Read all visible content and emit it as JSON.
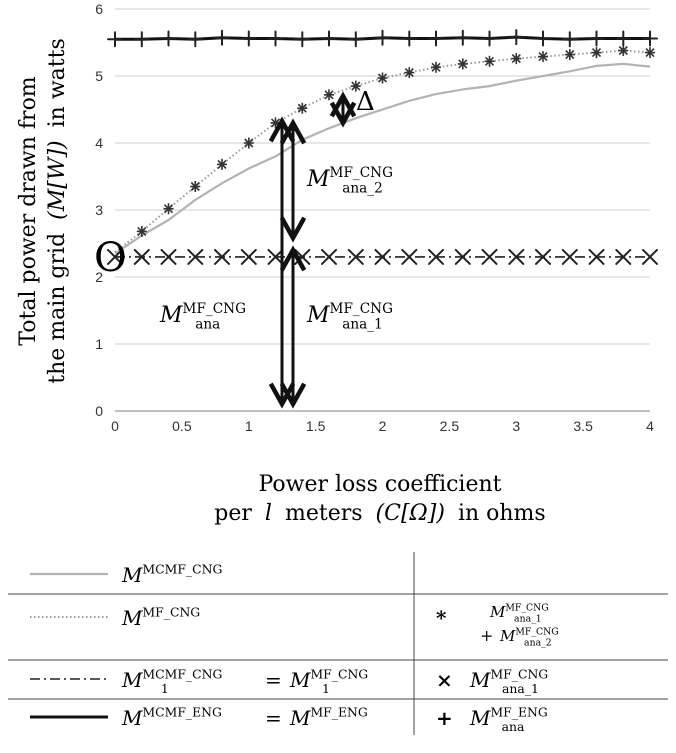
{
  "chart_data": {
    "type": "line",
    "ylabel_line1": "Total power drawn from",
    "ylabel_line2_a": "the main grid",
    "ylabel_line2_math": "(M[W])",
    "ylabel_line2_b": "in watts",
    "xlabel_line1": "Power loss coefficient",
    "xlabel_line2_a": "per",
    "xlabel_line2_l": "l",
    "xlabel_line2_b": "meters",
    "xlabel_line2_math": "(C[Ω])",
    "xlabel_line2_c": "in ohms",
    "xlim": [
      0,
      4
    ],
    "ylim": [
      0,
      6
    ],
    "x_ticks": [
      "0",
      "0.5",
      "1",
      "1.5",
      "2",
      "2.5",
      "3",
      "3.5",
      "4"
    ],
    "y_ticks": [
      "0",
      "1",
      "2",
      "3",
      "4",
      "5",
      "6"
    ],
    "grid": "horizontal",
    "series": [
      {
        "name": "M^MCMF_CNG",
        "style": "solid-gray",
        "x": [
          0,
          0.2,
          0.4,
          0.6,
          0.8,
          1.0,
          1.2,
          1.4,
          1.6,
          1.8,
          2.0,
          2.2,
          2.4,
          2.6,
          2.8,
          3.0,
          3.2,
          3.4,
          3.6,
          3.8,
          4.0
        ],
        "y": [
          2.35,
          2.62,
          2.85,
          3.15,
          3.4,
          3.62,
          3.8,
          4.05,
          4.22,
          4.37,
          4.5,
          4.63,
          4.73,
          4.8,
          4.85,
          4.93,
          5.0,
          5.07,
          5.15,
          5.18,
          5.14
        ]
      },
      {
        "name": "M^MF_CNG",
        "style": "dotted-gray",
        "x": [
          0,
          0.2,
          0.4,
          0.6,
          0.8,
          1.0,
          1.2,
          1.4,
          1.6,
          1.8,
          2.0,
          2.2,
          2.4,
          2.6,
          2.8,
          3.0,
          3.2,
          3.4,
          3.6,
          3.8,
          4.0
        ],
        "y": [
          2.37,
          2.68,
          3.02,
          3.35,
          3.68,
          4.0,
          4.3,
          4.52,
          4.72,
          4.85,
          4.97,
          5.05,
          5.13,
          5.18,
          5.22,
          5.26,
          5.29,
          5.32,
          5.35,
          5.38,
          5.35
        ]
      },
      {
        "name": "M_1^MCMF_CNG = M_1^MF_CNG",
        "style": "dashdot-black",
        "x": [
          0,
          0.2,
          0.4,
          0.6,
          0.8,
          1.0,
          1.2,
          1.4,
          1.6,
          1.8,
          2.0,
          2.2,
          2.4,
          2.6,
          2.8,
          3.0,
          3.2,
          3.4,
          3.6,
          3.8,
          4.0
        ],
        "y": [
          2.3,
          2.3,
          2.3,
          2.3,
          2.3,
          2.3,
          2.3,
          2.3,
          2.3,
          2.3,
          2.3,
          2.3,
          2.3,
          2.3,
          2.3,
          2.3,
          2.3,
          2.3,
          2.3,
          2.3,
          2.3
        ]
      },
      {
        "name": "M^MCMF_ENG = M^MF_ENG",
        "style": "solid-black",
        "x": [
          0,
          0.2,
          0.4,
          0.6,
          0.8,
          1.0,
          1.2,
          1.4,
          1.6,
          1.8,
          2.0,
          2.2,
          2.4,
          2.6,
          2.8,
          3.0,
          3.2,
          3.4,
          3.6,
          3.8,
          4.0
        ],
        "y": [
          5.55,
          5.55,
          5.56,
          5.55,
          5.57,
          5.56,
          5.56,
          5.55,
          5.56,
          5.55,
          5.57,
          5.56,
          5.56,
          5.57,
          5.56,
          5.58,
          5.56,
          5.55,
          5.56,
          5.56,
          5.56
        ]
      }
    ],
    "markers": [
      {
        "name": "M_ana_1^MF_CNG + M_ana_2^MF_CNG",
        "symbol": "asterisk",
        "x": [
          0.2,
          0.4,
          0.6,
          0.8,
          1.0,
          1.2,
          1.4,
          1.6,
          1.8,
          2.0,
          2.2,
          2.4,
          2.6,
          2.8,
          3.0,
          3.2,
          3.4,
          3.6,
          3.8,
          4.0
        ],
        "y": [
          2.68,
          3.02,
          3.35,
          3.68,
          4.0,
          4.3,
          4.52,
          4.72,
          4.85,
          4.97,
          5.05,
          5.13,
          5.18,
          5.22,
          5.26,
          5.29,
          5.32,
          5.35,
          5.38,
          5.35
        ]
      },
      {
        "name": "M_ana_1^MF_CNG",
        "symbol": "cross",
        "x": [
          0,
          0.2,
          0.4,
          0.6,
          0.8,
          1.0,
          1.2,
          1.4,
          1.6,
          1.8,
          2.0,
          2.2,
          2.4,
          2.6,
          2.8,
          3.0,
          3.2,
          3.4,
          3.6,
          3.8,
          4.0
        ],
        "y": [
          2.3,
          2.3,
          2.3,
          2.3,
          2.3,
          2.3,
          2.3,
          2.3,
          2.3,
          2.3,
          2.3,
          2.3,
          2.3,
          2.3,
          2.3,
          2.3,
          2.3,
          2.3,
          2.3,
          2.3,
          2.3
        ]
      },
      {
        "name": "M_ana^MF_ENG",
        "symbol": "plus",
        "x": [
          0,
          0.2,
          0.4,
          0.6,
          0.8,
          1.0,
          1.2,
          1.4,
          1.6,
          1.8,
          2.0,
          2.2,
          2.4,
          2.6,
          2.8,
          3.0,
          3.2,
          3.4,
          3.6,
          3.8,
          4.0
        ],
        "y": [
          5.55,
          5.55,
          5.56,
          5.55,
          5.57,
          5.56,
          5.56,
          5.55,
          5.56,
          5.55,
          5.57,
          5.56,
          5.56,
          5.57,
          5.56,
          5.58,
          5.56,
          5.55,
          5.56,
          5.56,
          5.56
        ]
      }
    ],
    "annotations": {
      "delta": "Δ",
      "ana2": {
        "base": "M",
        "sup": "MF_CNG",
        "sub": "ana_2"
      },
      "ana": {
        "base": "M",
        "sup": "MF_CNG",
        "sub": "ana"
      },
      "ana1": {
        "base": "M",
        "sup": "MF_CNG",
        "sub": "ana_1"
      },
      "origin_mark": "O"
    },
    "legend": {
      "placement": "bottom",
      "rows": [
        {
          "left": {
            "base": "M",
            "sup": "MCMF_CNG"
          }
        },
        {
          "left": {
            "base": "M",
            "sup": "MF_CNG"
          },
          "right_symbol": "*",
          "right_a": {
            "base": "M",
            "sup": "MF_CNG",
            "sub": "ana_1"
          },
          "right_plus": "+",
          "right_b": {
            "base": "M",
            "sup": "MF_CNG",
            "sub": "ana_2"
          }
        },
        {
          "left_a": {
            "base": "M",
            "sup": "MCMF_CNG",
            "sub": "1"
          },
          "left_eq": "=",
          "left_b": {
            "base": "M",
            "sup": "MF_CNG",
            "sub": "1"
          },
          "right_symbol": "×",
          "right_a": {
            "base": "M",
            "sup": "MF_CNG",
            "sub": "ana_1"
          }
        },
        {
          "left_a": {
            "base": "M",
            "sup": "MCMF_ENG"
          },
          "left_eq": "=",
          "left_b": {
            "base": "M",
            "sup": "MF_ENG"
          },
          "right_symbol": "+",
          "right_a": {
            "base": "M",
            "sup": "MF_ENG",
            "sub": "ana"
          }
        }
      ]
    }
  }
}
